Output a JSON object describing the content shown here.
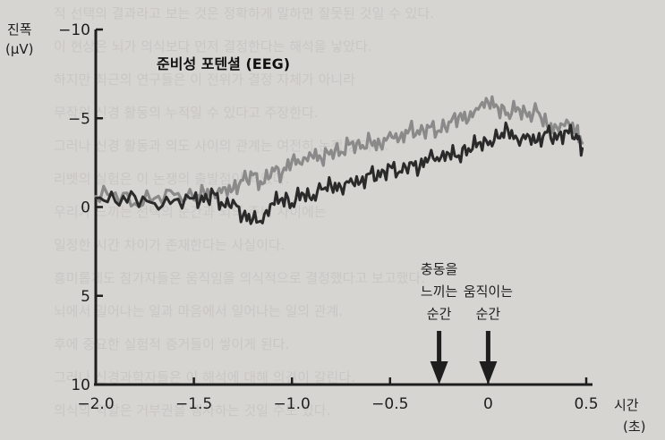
{
  "chart_data": {
    "type": "line",
    "title": "준비성 포텐셜 (EEG)",
    "ylabel": [
      "진폭",
      "(μV)"
    ],
    "xlabel": [
      "시간",
      "(초)"
    ],
    "xlim": [
      -2.0,
      0.5
    ],
    "ylim": [
      10,
      -10
    ],
    "y_inverted": true,
    "x_ticks": [
      -2.0,
      -1.5,
      -1.0,
      -0.5,
      0,
      0.5
    ],
    "x_tick_labels": [
      "−2.0",
      "−1.5",
      "−1.0",
      "−0.5",
      "0",
      "0.5"
    ],
    "y_ticks": [
      -10,
      -5,
      0,
      5,
      10
    ],
    "y_tick_labels": [
      "−10",
      "−5",
      "0",
      "5",
      "10"
    ],
    "grid": false,
    "series": [
      {
        "color": "#8a8a8a",
        "x": [
          -2.0,
          -1.9,
          -1.8,
          -1.7,
          -1.6,
          -1.5,
          -1.45,
          -1.4,
          -1.35,
          -1.3,
          -1.25,
          -1.2,
          -1.15,
          -1.1,
          -1.05,
          -1.0,
          -0.95,
          -0.9,
          -0.85,
          -0.8,
          -0.75,
          -0.7,
          -0.65,
          -0.6,
          -0.55,
          -0.5,
          -0.45,
          -0.4,
          -0.35,
          -0.3,
          -0.25,
          -0.2,
          -0.15,
          -0.1,
          -0.05,
          0.0,
          0.05,
          0.1,
          0.15,
          0.2,
          0.25,
          0.3,
          0.35,
          0.4,
          0.45,
          0.48
        ],
        "values": [
          -0.6,
          -0.8,
          -0.2,
          -0.5,
          -0.7,
          -0.4,
          -0.9,
          -0.8,
          -1.1,
          -1.0,
          -1.5,
          -1.8,
          -1.3,
          -2.2,
          -1.9,
          -2.6,
          -2.4,
          -2.9,
          -2.7,
          -3.2,
          -3.1,
          -3.6,
          -3.3,
          -3.7,
          -3.5,
          -4.2,
          -3.9,
          -4.4,
          -4.1,
          -4.5,
          -4.3,
          -4.8,
          -5.1,
          -4.9,
          -5.5,
          -5.9,
          -5.6,
          -5.3,
          -5.6,
          -5.1,
          -5.4,
          -4.6,
          -4.5,
          -4.9,
          -4.4,
          -3.6
        ]
      },
      {
        "color": "#2a2a2a",
        "x": [
          -2.0,
          -1.9,
          -1.8,
          -1.7,
          -1.6,
          -1.5,
          -1.45,
          -1.4,
          -1.35,
          -1.3,
          -1.25,
          -1.2,
          -1.15,
          -1.1,
          -1.05,
          -1.0,
          -0.95,
          -0.9,
          -0.85,
          -0.8,
          -0.75,
          -0.7,
          -0.65,
          -0.6,
          -0.55,
          -0.5,
          -0.45,
          -0.4,
          -0.35,
          -0.3,
          -0.25,
          -0.2,
          -0.15,
          -0.1,
          -0.05,
          0.0,
          0.05,
          0.1,
          0.15,
          0.2,
          0.25,
          0.3,
          0.35,
          0.4,
          0.45,
          0.48
        ],
        "values": [
          -0.5,
          -0.3,
          -0.6,
          -0.2,
          -0.4,
          -0.5,
          -0.3,
          -0.8,
          -0.1,
          -0.4,
          0.5,
          0.7,
          0.9,
          -0.2,
          -0.5,
          -0.2,
          -0.8,
          -0.4,
          -1.0,
          -1.2,
          -1.1,
          -1.6,
          -1.4,
          -1.9,
          -1.7,
          -2.3,
          -2.0,
          -2.5,
          -2.2,
          -2.8,
          -2.6,
          -3.0,
          -2.9,
          -3.3,
          -3.6,
          -3.5,
          -3.9,
          -4.4,
          -3.8,
          -4.1,
          -3.7,
          -4.2,
          -3.8,
          -4.3,
          -4.1,
          -3.3
        ]
      }
    ],
    "annotations": [
      {
        "lines": [
          "충동을",
          "느끼는",
          "순간"
        ],
        "x": -0.25
      },
      {
        "lines": [
          "움직이는",
          "순간"
        ],
        "x": 0.0
      }
    ]
  },
  "background_text": [
    "적 선택의 결과라고 보는 것은 정확하게 말하면 잘못된 것일 수 있다.",
    "이 현상은 뇌가 의식보다 먼저 결정한다는 해석을 낳았다.",
    "하지만 최근의 연구들은 이 전위가 결정 자체가 아니라",
    "무작위 신경 활동의 누적일 수 있다고 주장한다.",
    "그러나 신경 활동과 의도 사이의 관계는 여전히 논쟁 중이다.",
    "리벳의 실험은 이 논쟁의 출발점이 되었다.",
    "우리가 느끼는 선택의 순간과 뇌의 준비 사이에는",
    "일정한 시간 차이가 존재한다는 사실이다.",
    "흥미롭게도 참가자들은 움직임을 의식적으로 결정했다고 보고했다.",
    "뇌에서 일어나는 일과 마음에서 일어나는 일의 관계.",
    "후에 중요한 실험적 증거들이 쌓이게 된다.",
    "그러나 신경과학자들은 이 해석에 대해 의견이 갈린다.",
    "의식의 역할은 거부권을 행사하는 것일 수도 있다."
  ]
}
